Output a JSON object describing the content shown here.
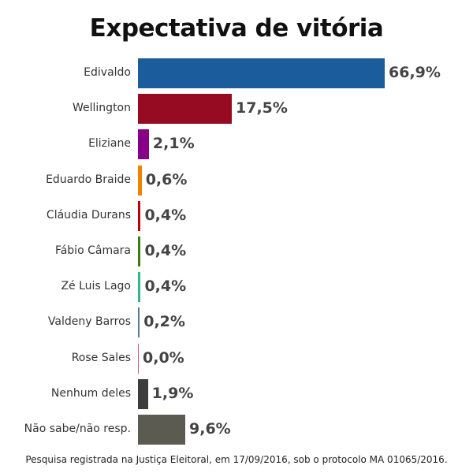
{
  "chart_data": {
    "type": "bar",
    "orientation": "horizontal",
    "title": "Expectativa de vitória",
    "categories": [
      "Edivaldo",
      "Wellington",
      "Eliziane",
      "Eduardo Braide",
      "Cláudia Durans",
      "Fábio Câmara",
      "Zé Luis Lago",
      "Valdeny Barros",
      "Rose Sales",
      "Nenhum deles",
      "Não sabe/não resp."
    ],
    "values": [
      66.9,
      17.5,
      2.1,
      0.6,
      0.4,
      0.4,
      0.4,
      0.2,
      0.0,
      1.9,
      9.6
    ],
    "labels": [
      "66,9%",
      "17,5%",
      "2,1%",
      "0,6%",
      "0,4%",
      "0,4%",
      "0,4%",
      "0,2%",
      "0,0%",
      "1,9%",
      "9,6%"
    ],
    "colors": [
      "#1a5c9c",
      "#960a22",
      "#880088",
      "#f58000",
      "#c00000",
      "#3a7a10",
      "#2bb88a",
      "#5a7890",
      "#c85a78",
      "#3c3c3c",
      "#5b5b52"
    ],
    "xlabel": "",
    "ylabel": "",
    "footnote": "Pesquisa registrada na Justiça Eleitoral, em 17/09/2016, sob o protocolo MA 01065/2016."
  }
}
